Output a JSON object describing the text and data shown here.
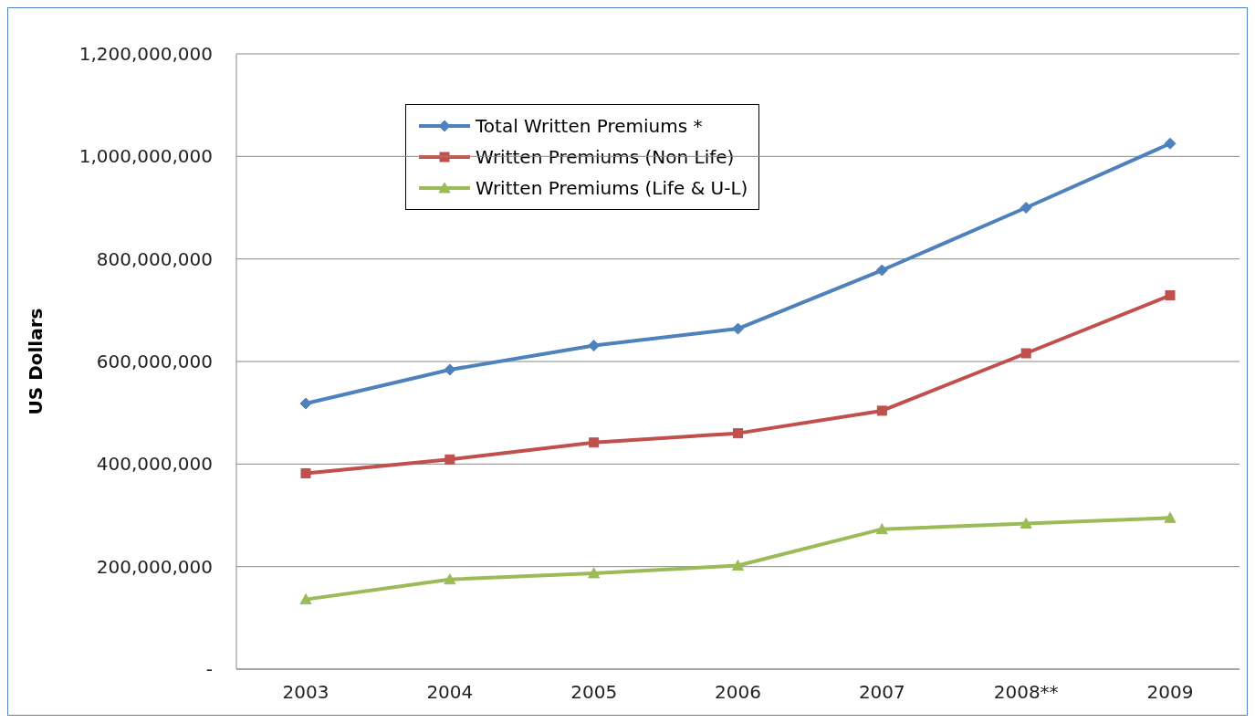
{
  "chart_data": {
    "type": "line",
    "ylabel": "US Dollars",
    "categories": [
      "2003",
      "2004",
      "2005",
      "2006",
      "2007",
      "2008**",
      "2009"
    ],
    "series": [
      {
        "name": "Total Written Premiums *",
        "color": "#4f81bd",
        "marker": "diamond",
        "values": [
          518000000,
          584000000,
          631000000,
          664000000,
          778000000,
          900000000,
          1025000000
        ]
      },
      {
        "name": "Written Premiums (Non Life)",
        "color": "#c0504d",
        "marker": "square",
        "values": [
          382000000,
          409000000,
          442000000,
          460000000,
          504000000,
          616000000,
          729000000
        ]
      },
      {
        "name": "Written Premiums (Life & U-L)",
        "color": "#9bbb59",
        "marker": "triangle",
        "values": [
          136000000,
          175000000,
          187000000,
          202000000,
          273000000,
          284000000,
          295000000
        ]
      }
    ],
    "ylim": [
      0,
      1200000000
    ],
    "yticks": [
      {
        "value": 0,
        "label": "-"
      },
      {
        "value": 200000000,
        "label": "200,000,000"
      },
      {
        "value": 400000000,
        "label": "400,000,000"
      },
      {
        "value": 600000000,
        "label": "600,000,000"
      },
      {
        "value": 800000000,
        "label": "800,000,000"
      },
      {
        "value": 1000000000,
        "label": "1,000,000,000"
      },
      {
        "value": 1200000000,
        "label": "1,200,000,000"
      }
    ],
    "grid": "y",
    "legend": "top left",
    "line_style": "solid"
  }
}
